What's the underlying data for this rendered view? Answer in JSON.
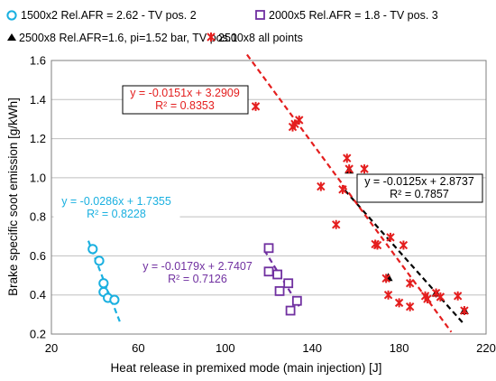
{
  "chart_data": {
    "type": "scatter",
    "xlabel": "Heat release in premixed mode (main injection) [J]",
    "ylabel": "Brake specific soot emission [g/kWh]",
    "xlim": [
      20,
      220
    ],
    "ylim": [
      0.2,
      1.6
    ],
    "x_ticks": [
      20,
      60,
      100,
      140,
      180,
      220
    ],
    "y_ticks": [
      0.2,
      0.4,
      0.6,
      0.8,
      1.0,
      1.2,
      1.4,
      1.6
    ],
    "y_tick_labels": [
      "0.2",
      "0.4",
      "0.6",
      "0.8",
      "1.0",
      "1.2",
      "1.4",
      "1.6"
    ],
    "grid": "horizontal",
    "legend_position": "top",
    "series": [
      {
        "key": "s1",
        "name": "1500x2 Rel.AFR = 2.62 - TV pos. 2",
        "marker": "circle",
        "color": "#1ab0e0",
        "points": [
          [
            39,
            0.635
          ],
          [
            42,
            0.575
          ],
          [
            44,
            0.46
          ],
          [
            44,
            0.415
          ],
          [
            46,
            0.385
          ],
          [
            49,
            0.375
          ]
        ],
        "trendline": {
          "x_range": [
            37,
            52
          ],
          "slope": -0.0286,
          "intercept": 1.7355,
          "color": "#1ab0e0",
          "equation": "y = -0.0286x + 1.7355",
          "r2": "R² = 0.8228"
        }
      },
      {
        "key": "s2",
        "name": "2000x5 Rel.AFR = 1.8 - TV pos. 3",
        "marker": "square",
        "color": "#7030a0",
        "points": [
          [
            120,
            0.64
          ],
          [
            120,
            0.52
          ],
          [
            124,
            0.505
          ],
          [
            125,
            0.42
          ],
          [
            129,
            0.46
          ],
          [
            130,
            0.32
          ],
          [
            133,
            0.37
          ]
        ],
        "trendline": {
          "x_range": [
            118,
            134
          ],
          "slope": -0.0179,
          "intercept": 2.7407,
          "color": "#7030a0",
          "equation": "y = -0.0179x + 2.7407",
          "r2": "R² = 0.7126"
        }
      },
      {
        "key": "s3",
        "name": "2500x8 Rel.AFR=1.6, pi=1.52 bar, TV pos.1",
        "marker": "triangle",
        "color": "#000000",
        "points": [
          [
            157,
            1.04
          ],
          [
            175,
            0.49
          ],
          [
            197,
            0.41
          ],
          [
            210,
            0.32
          ]
        ],
        "trendline": {
          "x_range": [
            155,
            210
          ],
          "slope": -0.0125,
          "intercept": 2.8737,
          "color": "#000000",
          "equation": "y = -0.0125x + 2.8737",
          "r2": "R² = 0.7857"
        }
      },
      {
        "key": "s4",
        "name": "2500x8 all points",
        "marker": "star",
        "color": "#e41e1e",
        "points": [
          [
            114,
            1.365
          ],
          [
            131,
            1.26
          ],
          [
            132,
            1.275
          ],
          [
            134,
            1.295
          ],
          [
            144,
            0.955
          ],
          [
            151,
            0.76
          ],
          [
            154,
            0.94
          ],
          [
            156,
            1.1
          ],
          [
            157,
            1.045
          ],
          [
            164,
            1.045
          ],
          [
            169,
            0.66
          ],
          [
            170,
            0.655
          ],
          [
            176,
            0.695
          ],
          [
            174,
            0.485
          ],
          [
            175,
            0.4
          ],
          [
            182,
            0.655
          ],
          [
            180,
            0.36
          ],
          [
            185,
            0.46
          ],
          [
            185,
            0.34
          ],
          [
            192,
            0.395
          ],
          [
            193,
            0.38
          ],
          [
            197,
            0.41
          ],
          [
            199,
            0.39
          ],
          [
            207,
            0.395
          ],
          [
            210,
            0.32
          ]
        ],
        "trendline": {
          "x_range": [
            110,
            204
          ],
          "slope": -0.0151,
          "intercept": 3.2909,
          "color": "#e41e1e",
          "equation": "y = -0.0151x + 3.2909",
          "r2": "R² = 0.8353"
        }
      }
    ]
  }
}
